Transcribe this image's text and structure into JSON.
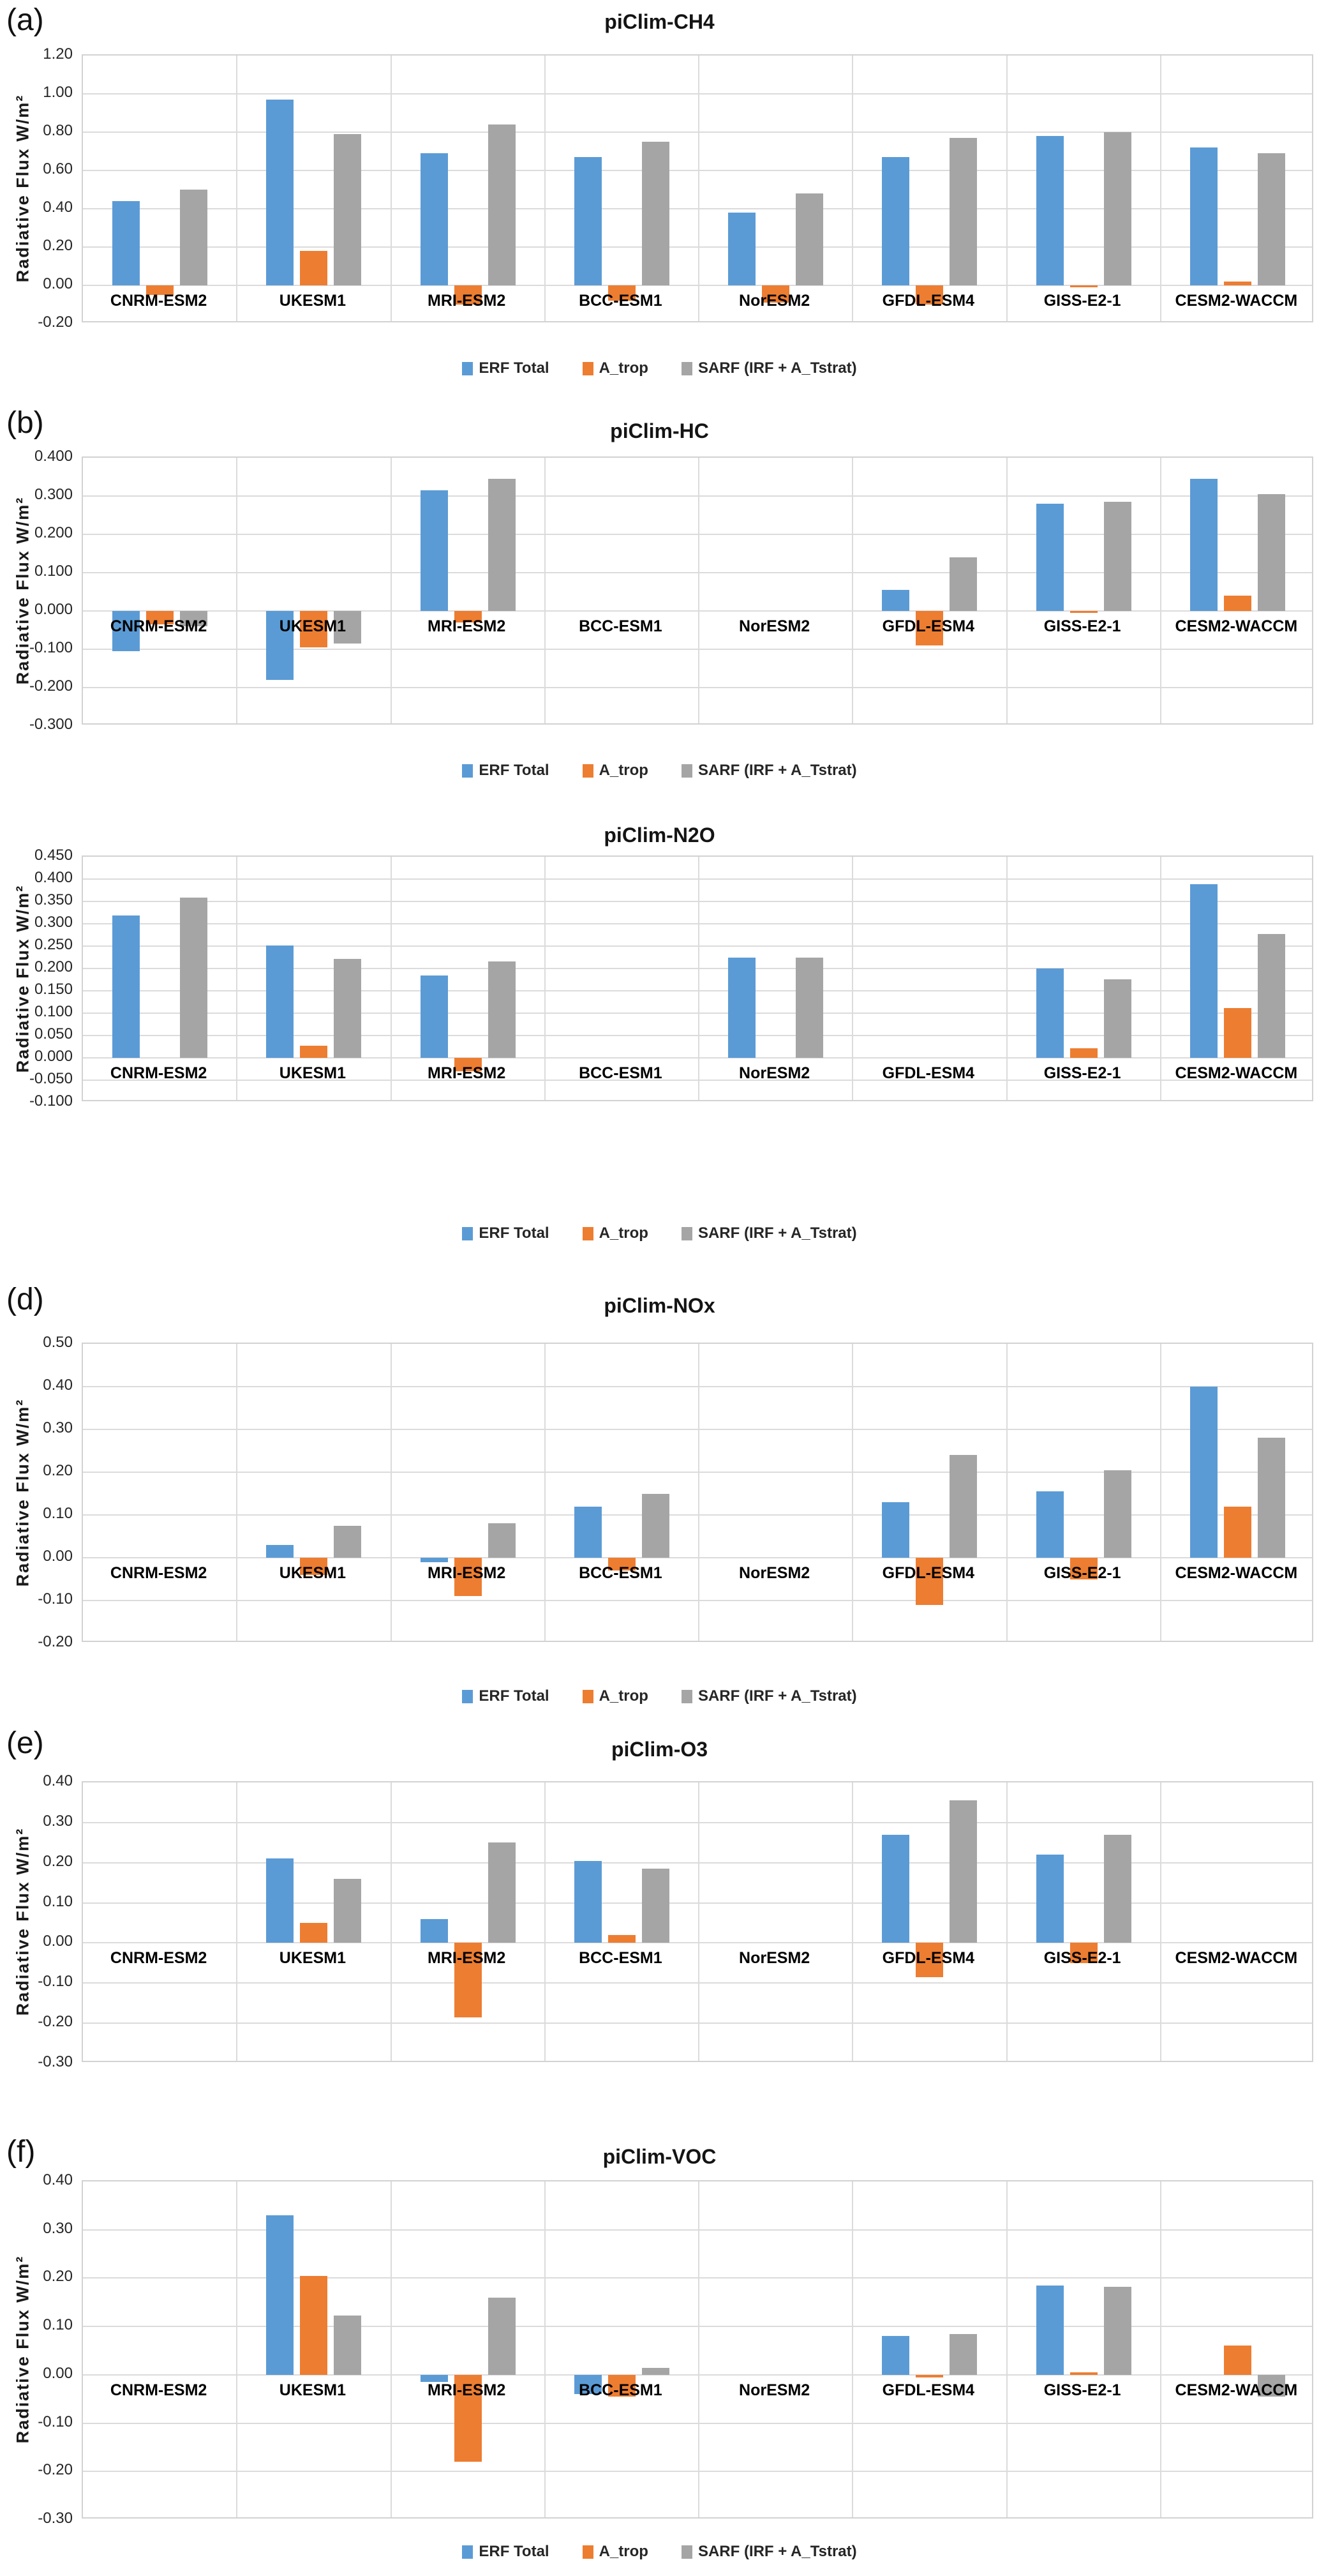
{
  "figure": {
    "description": "Six-panel bar chart figure comparing radiative flux diagnostics across climate models",
    "y_axis_title": "Radiative Flux W/m²"
  },
  "legend": {
    "items": [
      {
        "label": "ERF Total",
        "color": "#5B9BD5"
      },
      {
        "label": "A_trop",
        "color": "#ED7D31"
      },
      {
        "label": "SARF (IRF + A_Tstrat)",
        "color": "#A5A5A5"
      }
    ]
  },
  "chart_data": [
    {
      "id": "a",
      "type": "bar",
      "letter": "(a)",
      "title": "piClim-CH4",
      "ylabel": "Radiative Flux W/m²",
      "ylim": [
        -0.2,
        1.2
      ],
      "ytick_step": 0.2,
      "grid": true,
      "legend_visible": true,
      "legend_position": "bottom",
      "yticks": [
        "1.20",
        "1.00",
        "0.80",
        "0.60",
        "0.40",
        "0.20",
        "0.00",
        "-0.20"
      ],
      "categories": [
        "CNRM-ESM2",
        "UKESM1",
        "MRI-ESM2",
        "BCC-ESM1",
        "NorESM2",
        "GFDL-ESM4",
        "GISS-E2-1",
        "CESM2-WACCM"
      ],
      "series": [
        {
          "name": "ERF Total",
          "color": "#5B9BD5",
          "values": [
            0.44,
            0.97,
            0.69,
            0.67,
            0.38,
            0.67,
            0.78,
            0.72
          ]
        },
        {
          "name": "A_trop",
          "color": "#ED7D31",
          "values": [
            -0.05,
            0.18,
            -0.1,
            -0.08,
            -0.09,
            -0.1,
            -0.01,
            0.02
          ]
        },
        {
          "name": "SARF (IRF + A_Tstrat)",
          "color": "#A5A5A5",
          "values": [
            0.5,
            0.79,
            0.84,
            0.75,
            0.48,
            0.77,
            0.8,
            0.69
          ]
        }
      ]
    },
    {
      "id": "b",
      "type": "bar",
      "letter": "(b)",
      "title": "piClim-HC",
      "ylabel": "Radiative Flux W/m²",
      "ylim": [
        -0.3,
        0.4
      ],
      "ytick_step": 0.1,
      "grid": true,
      "legend_visible": true,
      "legend_position": "bottom",
      "yticks": [
        "0.400",
        "0.300",
        "0.200",
        "0.100",
        "0.000",
        "-0.100",
        "-0.200",
        "-0.300"
      ],
      "categories": [
        "CNRM-ESM2",
        "UKESM1",
        "MRI-ESM2",
        "BCC-ESM1",
        "NorESM2",
        "GFDL-ESM4",
        "GISS-E2-1",
        "CESM2-WACCM"
      ],
      "series": [
        {
          "name": "ERF Total",
          "color": "#5B9BD5",
          "values": [
            -0.105,
            -0.18,
            0.315,
            null,
            null,
            0.055,
            0.28,
            0.345
          ]
        },
        {
          "name": "A_trop",
          "color": "#ED7D31",
          "values": [
            -0.035,
            -0.095,
            -0.03,
            null,
            null,
            -0.09,
            -0.005,
            0.04
          ]
        },
        {
          "name": "SARF (IRF + A_Tstrat)",
          "color": "#A5A5A5",
          "values": [
            -0.04,
            -0.085,
            0.345,
            null,
            null,
            0.14,
            0.285,
            0.305
          ]
        }
      ]
    },
    {
      "id": "c",
      "type": "bar",
      "letter": null,
      "title": "piClim-N2O",
      "ylabel": "Radiative Flux W/m²",
      "ylim": [
        -0.1,
        0.45
      ],
      "ytick_step": 0.05,
      "grid": true,
      "legend_visible": true,
      "legend_position": "bottom",
      "yticks": [
        "0.450",
        "0.400",
        "0.350",
        "0.300",
        "0.250",
        "0.200",
        "0.150",
        "0.100",
        "0.050",
        "0.000",
        "-0.050",
        "-0.100"
      ],
      "categories": [
        "CNRM-ESM2",
        "UKESM1",
        "MRI-ESM2",
        "BCC-ESM1",
        "NorESM2",
        "GFDL-ESM4",
        "GISS-E2-1",
        "CESM2-WACCM"
      ],
      "series": [
        {
          "name": "ERF Total",
          "color": "#5B9BD5",
          "values": [
            0.318,
            0.251,
            0.184,
            null,
            0.224,
            null,
            0.2,
            0.389
          ]
        },
        {
          "name": "A_trop",
          "color": "#ED7D31",
          "values": [
            null,
            0.027,
            -0.03,
            null,
            null,
            null,
            0.022,
            0.112
          ]
        },
        {
          "name": "SARF (IRF + A_Tstrat)",
          "color": "#A5A5A5",
          "values": [
            0.358,
            0.221,
            0.216,
            null,
            0.224,
            null,
            0.176,
            0.277
          ]
        }
      ]
    },
    {
      "id": "d",
      "type": "bar",
      "letter": "(d)",
      "title": "piClim-NOx",
      "ylabel": "Radiative Flux W/m²",
      "ylim": [
        -0.2,
        0.5
      ],
      "ytick_step": 0.1,
      "grid": true,
      "legend_visible": true,
      "legend_position": "bottom",
      "yticks": [
        "0.50",
        "0.40",
        "0.30",
        "0.20",
        "0.10",
        "0.00",
        "-0.10",
        "-0.20"
      ],
      "categories": [
        "CNRM-ESM2",
        "UKESM1",
        "MRI-ESM2",
        "BCC-ESM1",
        "NorESM2",
        "GFDL-ESM4",
        "GISS-E2-1",
        "CESM2-WACCM"
      ],
      "series": [
        {
          "name": "ERF Total",
          "color": "#5B9BD5",
          "values": [
            null,
            0.03,
            -0.01,
            0.12,
            null,
            0.13,
            0.155,
            0.4
          ]
        },
        {
          "name": "A_trop",
          "color": "#ED7D31",
          "values": [
            null,
            -0.04,
            -0.09,
            -0.03,
            null,
            -0.11,
            -0.05,
            0.12
          ]
        },
        {
          "name": "SARF (IRF + A_Tstrat)",
          "color": "#A5A5A5",
          "values": [
            null,
            0.075,
            0.08,
            0.15,
            null,
            0.24,
            0.205,
            0.28
          ]
        }
      ]
    },
    {
      "id": "e",
      "type": "bar",
      "letter": "(e)",
      "title": "piClim-O3",
      "ylabel": "Radiative Flux W/m²",
      "ylim": [
        -0.3,
        0.4
      ],
      "ytick_step": 0.1,
      "grid": true,
      "legend_visible": false,
      "legend_position": "none",
      "yticks": [
        "0.40",
        "0.30",
        "0.20",
        "0.10",
        "0.00",
        "-0.10",
        "-0.20",
        "-0.30"
      ],
      "categories": [
        "CNRM-ESM2",
        "UKESM1",
        "MRI-ESM2",
        "BCC-ESM1",
        "NorESM2",
        "GFDL-ESM4",
        "GISS-E2-1",
        "CESM2-WACCM"
      ],
      "series": [
        {
          "name": "ERF Total",
          "color": "#5B9BD5",
          "values": [
            null,
            0.21,
            0.06,
            0.205,
            null,
            0.27,
            0.22,
            null
          ]
        },
        {
          "name": "A_trop",
          "color": "#ED7D31",
          "values": [
            null,
            0.05,
            -0.185,
            0.02,
            null,
            -0.085,
            -0.05,
            null
          ]
        },
        {
          "name": "SARF (IRF + A_Tstrat)",
          "color": "#A5A5A5",
          "values": [
            null,
            0.16,
            0.25,
            0.185,
            null,
            0.355,
            0.27,
            null
          ]
        }
      ]
    },
    {
      "id": "f",
      "type": "bar",
      "letter": "(f)",
      "title": "piClim-VOC",
      "ylabel": "Radiative Flux W/m²",
      "ylim": [
        -0.3,
        0.4
      ],
      "ytick_step": 0.1,
      "grid": true,
      "legend_visible": true,
      "legend_position": "bottom",
      "yticks": [
        "0.40",
        "0.30",
        "0.20",
        "0.10",
        "0.00",
        "-0.10",
        "-0.20",
        "-0.30"
      ],
      "categories": [
        "CNRM-ESM2",
        "UKESM1",
        "MRI-ESM2",
        "BCC-ESM1",
        "NorESM2",
        "GFDL-ESM4",
        "GISS-E2-1",
        "CESM2-WACCM"
      ],
      "series": [
        {
          "name": "ERF Total",
          "color": "#5B9BD5",
          "values": [
            null,
            0.33,
            -0.015,
            -0.04,
            null,
            0.08,
            0.185,
            null
          ]
        },
        {
          "name": "A_trop",
          "color": "#ED7D31",
          "values": [
            null,
            0.205,
            -0.18,
            -0.045,
            null,
            -0.005,
            0.005,
            0.06
          ]
        },
        {
          "name": "SARF (IRF + A_Tstrat)",
          "color": "#A5A5A5",
          "values": [
            null,
            0.122,
            0.16,
            0.015,
            null,
            0.085,
            0.182,
            -0.045
          ]
        }
      ]
    }
  ]
}
